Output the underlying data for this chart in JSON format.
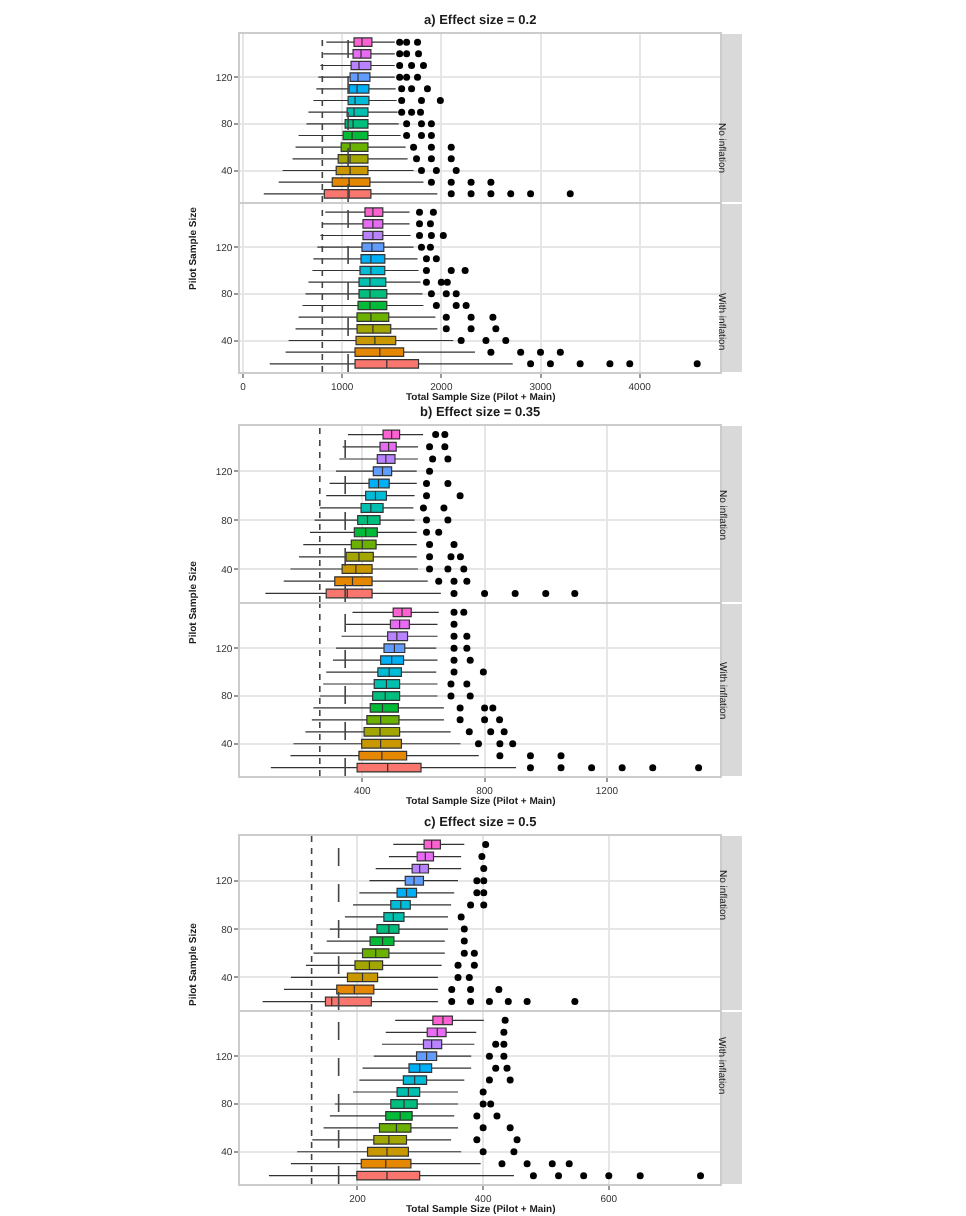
{
  "chart_data": [
    {
      "type": "box",
      "orientation": "horizontal",
      "title": "a) Effect size = 0.2",
      "ylabel": "Pilot Sample Size",
      "annotations": [
        "No inflation"
      ],
      "tick_labels": "y",
      "grid": true,
      "categories": [
        null,
        null,
        null,
        "120",
        null,
        null,
        null,
        "80",
        null,
        null,
        null,
        "40",
        null,
        null
      ],
      "colors": [
        "#FD61D1",
        "#E76BF3",
        "#B983FF",
        "#619CFF",
        "#00B0F6",
        "#00BCD8",
        "#00C0AF",
        "#00BF7D",
        "#00BA38",
        "#6BB100",
        "#A3A500",
        "#C99800",
        "#E58700",
        "#F8766D"
      ],
      "xlim": [
        -30,
        4810
      ],
      "xticks": [
        0,
        1000,
        2000,
        3000,
        4000
      ],
      "ref_lines": [
        {
          "axis": "x",
          "value": 800,
          "line_style": "dotted"
        },
        {
          "axis": "x",
          "value": 1060,
          "line_style": "dashed"
        }
      ],
      "boxes": [
        {
          "low": 840,
          "q1": 1120,
          "median": 1200,
          "q3": 1300,
          "high": 1530,
          "outliers": [
            1580,
            1650,
            1760
          ]
        },
        {
          "low": 810,
          "q1": 1110,
          "median": 1190,
          "q3": 1290,
          "high": 1530,
          "outliers": [
            1580,
            1650,
            1770
          ]
        },
        {
          "low": 780,
          "q1": 1090,
          "median": 1170,
          "q3": 1290,
          "high": 1530,
          "outliers": [
            1580,
            1700,
            1820
          ]
        },
        {
          "low": 760,
          "q1": 1080,
          "median": 1160,
          "q3": 1280,
          "high": 1530,
          "outliers": [
            1580,
            1650,
            1760
          ]
        },
        {
          "low": 740,
          "q1": 1070,
          "median": 1150,
          "q3": 1270,
          "high": 1540,
          "outliers": [
            1600,
            1700,
            1860
          ]
        },
        {
          "low": 710,
          "q1": 1060,
          "median": 1130,
          "q3": 1270,
          "high": 1550,
          "outliers": [
            1600,
            1800,
            1990
          ]
        },
        {
          "low": 660,
          "q1": 1050,
          "median": 1120,
          "q3": 1260,
          "high": 1560,
          "outliers": [
            1600,
            1700,
            1790
          ]
        },
        {
          "low": 640,
          "q1": 1030,
          "median": 1110,
          "q3": 1260,
          "high": 1570,
          "outliers": [
            1650,
            1800,
            1900
          ]
        },
        {
          "low": 560,
          "q1": 1010,
          "median": 1100,
          "q3": 1260,
          "high": 1590,
          "outliers": [
            1650,
            1800,
            1900
          ]
        },
        {
          "low": 530,
          "q1": 990,
          "median": 1080,
          "q3": 1260,
          "high": 1640,
          "outliers": [
            1720,
            1900,
            2100
          ]
        },
        {
          "low": 500,
          "q1": 960,
          "median": 1080,
          "q3": 1260,
          "high": 1660,
          "outliers": [
            1750,
            1900,
            2100
          ]
        },
        {
          "low": 400,
          "q1": 940,
          "median": 1080,
          "q3": 1260,
          "high": 1720,
          "outliers": [
            1800,
            1950,
            2150
          ]
        },
        {
          "low": 360,
          "q1": 900,
          "median": 1070,
          "q3": 1280,
          "high": 1820,
          "outliers": [
            1900,
            2100,
            2300,
            2500
          ]
        },
        {
          "low": 210,
          "q1": 820,
          "median": 1070,
          "q3": 1290,
          "high": 1960,
          "outliers": [
            2100,
            2300,
            2500,
            2700,
            2900,
            3300
          ]
        }
      ]
    },
    {
      "type": "box",
      "orientation": "horizontal",
      "xlabel": "Total Sample Size (Pilot + Main)",
      "annotations": [
        "With inflation"
      ],
      "grid": true,
      "categories": [
        null,
        null,
        null,
        "120",
        null,
        null,
        null,
        "80",
        null,
        null,
        null,
        "40",
        null,
        null
      ],
      "colors": [
        "#FD61D1",
        "#E76BF3",
        "#B983FF",
        "#619CFF",
        "#00B0F6",
        "#00BCD8",
        "#00C0AF",
        "#00BF7D",
        "#00BA38",
        "#6BB100",
        "#A3A500",
        "#C99800",
        "#E58700",
        "#F8766D"
      ],
      "xlim": [
        -30,
        4810
      ],
      "xticks": [
        0,
        1000,
        2000,
        3000,
        4000
      ],
      "ref_lines": [
        {
          "axis": "x",
          "value": 800,
          "line_style": "dotted"
        },
        {
          "axis": "x",
          "value": 1060,
          "line_style": "dashed"
        }
      ],
      "boxes": [
        {
          "low": 830,
          "q1": 1230,
          "median": 1310,
          "q3": 1410,
          "high": 1680,
          "outliers": [
            1780,
            1920
          ]
        },
        {
          "low": 800,
          "q1": 1210,
          "median": 1310,
          "q3": 1410,
          "high": 1680,
          "outliers": [
            1780,
            1890
          ]
        },
        {
          "low": 780,
          "q1": 1210,
          "median": 1310,
          "q3": 1410,
          "high": 1690,
          "outliers": [
            1780,
            1900,
            2020
          ]
        },
        {
          "low": 750,
          "q1": 1200,
          "median": 1300,
          "q3": 1420,
          "high": 1720,
          "outliers": [
            1800,
            1890
          ]
        },
        {
          "low": 710,
          "q1": 1190,
          "median": 1290,
          "q3": 1430,
          "high": 1760,
          "outliers": [
            1850,
            1950
          ]
        },
        {
          "low": 700,
          "q1": 1180,
          "median": 1290,
          "q3": 1430,
          "high": 1770,
          "outliers": [
            1850,
            2100,
            2240
          ]
        },
        {
          "low": 660,
          "q1": 1170,
          "median": 1280,
          "q3": 1440,
          "high": 1790,
          "outliers": [
            1850,
            2000,
            2060
          ]
        },
        {
          "low": 630,
          "q1": 1170,
          "median": 1280,
          "q3": 1450,
          "high": 1810,
          "outliers": [
            1900,
            2050,
            2150
          ]
        },
        {
          "low": 600,
          "q1": 1160,
          "median": 1280,
          "q3": 1450,
          "high": 1820,
          "outliers": [
            1950,
            2150,
            2250
          ]
        },
        {
          "low": 560,
          "q1": 1150,
          "median": 1290,
          "q3": 1470,
          "high": 1940,
          "outliers": [
            2050,
            2300,
            2520
          ]
        },
        {
          "low": 530,
          "q1": 1150,
          "median": 1310,
          "q3": 1490,
          "high": 1960,
          "outliers": [
            2050,
            2300,
            2550
          ]
        },
        {
          "low": 460,
          "q1": 1140,
          "median": 1330,
          "q3": 1540,
          "high": 2120,
          "outliers": [
            2200,
            2450,
            2650
          ]
        },
        {
          "low": 430,
          "q1": 1130,
          "median": 1380,
          "q3": 1620,
          "high": 2340,
          "outliers": [
            2500,
            2800,
            3000,
            3200
          ]
        },
        {
          "low": 270,
          "q1": 1130,
          "median": 1450,
          "q3": 1770,
          "high": 2720,
          "outliers": [
            2900,
            3100,
            3400,
            3700,
            3900,
            4580
          ]
        }
      ]
    },
    {
      "type": "box",
      "orientation": "horizontal",
      "title": "b) Effect size = 0.35",
      "ylabel": "Pilot Sample Size",
      "annotations": [
        "No inflation"
      ],
      "tick_labels": "y",
      "grid": true,
      "categories": [
        null,
        null,
        null,
        "120",
        null,
        null,
        null,
        "80",
        null,
        null,
        null,
        "40",
        null,
        null
      ],
      "colors": [
        "#FD61D1",
        "#E76BF3",
        "#B983FF",
        "#619CFF",
        "#00B0F6",
        "#00BCD8",
        "#00C0AF",
        "#00BF7D",
        "#00BA38",
        "#6BB100",
        "#A3A500",
        "#C99800",
        "#E58700",
        "#F8766D"
      ],
      "xlim": [
        0,
        1570
      ],
      "xticks": [
        400,
        800,
        1200
      ],
      "ref_lines": [
        {
          "axis": "x",
          "value": 261,
          "line_style": "dotted"
        },
        {
          "axis": "x",
          "value": 344,
          "line_style": "dashed"
        }
      ],
      "boxes": [
        {
          "low": 353,
          "q1": 468,
          "median": 496,
          "q3": 522,
          "high": 599,
          "outliers": [
            640,
            670
          ]
        },
        {
          "low": 336,
          "q1": 458,
          "median": 486,
          "q3": 511,
          "high": 582,
          "outliers": [
            620,
            670
          ]
        },
        {
          "low": 325,
          "q1": 449,
          "median": 477,
          "q3": 507,
          "high": 582,
          "outliers": [
            630,
            680
          ]
        },
        {
          "low": 314,
          "q1": 436,
          "median": 466,
          "q3": 496,
          "high": 578,
          "outliers": [
            620
          ]
        },
        {
          "low": 293,
          "q1": 422,
          "median": 453,
          "q3": 488,
          "high": 578,
          "outliers": [
            610,
            680
          ]
        },
        {
          "low": 282,
          "q1": 411,
          "median": 443,
          "q3": 479,
          "high": 571,
          "outliers": [
            610,
            720
          ]
        },
        {
          "low": 261,
          "q1": 396,
          "median": 428,
          "q3": 468,
          "high": 567,
          "outliers": [
            600,
            667
          ]
        },
        {
          "low": 244,
          "q1": 385,
          "median": 417,
          "q3": 458,
          "high": 571,
          "outliers": [
            610,
            680
          ]
        },
        {
          "low": 229,
          "q1": 374,
          "median": 411,
          "q3": 449,
          "high": 578,
          "outliers": [
            610,
            650
          ]
        },
        {
          "low": 207,
          "q1": 364,
          "median": 400,
          "q3": 445,
          "high": 578,
          "outliers": [
            620,
            700
          ]
        },
        {
          "low": 193,
          "q1": 347,
          "median": 389,
          "q3": 436,
          "high": 578,
          "outliers": [
            620,
            690,
            721
          ]
        },
        {
          "low": 165,
          "q1": 334,
          "median": 379,
          "q3": 432,
          "high": 582,
          "outliers": [
            620,
            680,
            732
          ]
        },
        {
          "low": 143,
          "q1": 310,
          "median": 368,
          "q3": 432,
          "high": 614,
          "outliers": [
            650,
            700,
            742
          ]
        },
        {
          "low": 83,
          "q1": 282,
          "median": 351,
          "q3": 432,
          "high": 657,
          "outliers": [
            700,
            800,
            900,
            1000,
            1095
          ]
        }
      ]
    },
    {
      "type": "box",
      "orientation": "horizontal",
      "xlabel": "Total Sample Size (Pilot + Main)",
      "annotations": [
        "With inflation"
      ],
      "grid": true,
      "categories": [
        null,
        null,
        null,
        "120",
        null,
        null,
        null,
        "80",
        null,
        null,
        null,
        "40",
        null,
        null
      ],
      "colors": [
        "#FD61D1",
        "#E76BF3",
        "#B983FF",
        "#619CFF",
        "#00B0F6",
        "#00BCD8",
        "#00C0AF",
        "#00BF7D",
        "#00BA38",
        "#6BB100",
        "#A3A500",
        "#C99800",
        "#E58700",
        "#F8766D"
      ],
      "xlim": [
        0,
        1570
      ],
      "xticks": [
        400,
        800,
        1200
      ],
      "ref_lines": [
        {
          "axis": "x",
          "value": 261,
          "line_style": "dotted"
        },
        {
          "axis": "x",
          "value": 344,
          "line_style": "dashed"
        }
      ],
      "boxes": [
        {
          "low": 368,
          "q1": 501,
          "median": 530,
          "q3": 560,
          "high": 650,
          "outliers": [
            700,
            732
          ]
        },
        {
          "low": 347,
          "q1": 492,
          "median": 522,
          "q3": 554,
          "high": 646,
          "outliers": [
            700
          ]
        },
        {
          "low": 332,
          "q1": 483,
          "median": 513,
          "q3": 548,
          "high": 646,
          "outliers": [
            700,
            742
          ]
        },
        {
          "low": 314,
          "q1": 471,
          "median": 505,
          "q3": 539,
          "high": 642,
          "outliers": [
            700,
            742
          ]
        },
        {
          "low": 304,
          "q1": 460,
          "median": 496,
          "q3": 535,
          "high": 646,
          "outliers": [
            700,
            753
          ]
        },
        {
          "low": 282,
          "q1": 451,
          "median": 488,
          "q3": 528,
          "high": 642,
          "outliers": [
            700,
            796
          ]
        },
        {
          "low": 272,
          "q1": 439,
          "median": 479,
          "q3": 522,
          "high": 646,
          "outliers": [
            690,
            742
          ]
        },
        {
          "low": 261,
          "q1": 434,
          "median": 475,
          "q3": 522,
          "high": 646,
          "outliers": [
            690,
            753
          ]
        },
        {
          "low": 240,
          "q1": 426,
          "median": 466,
          "q3": 518,
          "high": 667,
          "outliers": [
            720,
            800,
            827
          ]
        },
        {
          "low": 235,
          "q1": 415,
          "median": 460,
          "q3": 520,
          "high": 667,
          "outliers": [
            720,
            800,
            849
          ]
        },
        {
          "low": 214,
          "q1": 406,
          "median": 458,
          "q3": 522,
          "high": 689,
          "outliers": [
            750,
            820,
            864
          ]
        },
        {
          "low": 175,
          "q1": 398,
          "median": 460,
          "q3": 528,
          "high": 721,
          "outliers": [
            780,
            850,
            892
          ]
        },
        {
          "low": 165,
          "q1": 389,
          "median": 464,
          "q3": 545,
          "high": 781,
          "outliers": [
            850,
            950,
            1050
          ]
        },
        {
          "low": 101,
          "q1": 383,
          "median": 483,
          "q3": 592,
          "high": 903,
          "outliers": [
            950,
            1050,
            1150,
            1250,
            1350,
            1500
          ]
        }
      ]
    },
    {
      "type": "box",
      "orientation": "horizontal",
      "title": "c) Effect size = 0.5",
      "ylabel": "Pilot Sample Size",
      "annotations": [
        "No inflation"
      ],
      "tick_labels": "y",
      "grid": true,
      "categories": [
        null,
        null,
        null,
        "120",
        null,
        null,
        null,
        "80",
        null,
        null,
        null,
        "40",
        null,
        null
      ],
      "colors": [
        "#FD61D1",
        "#E76BF3",
        "#B983FF",
        "#619CFF",
        "#00B0F6",
        "#00BCD8",
        "#00C0AF",
        "#00BF7D",
        "#00BA38",
        "#6BB100",
        "#A3A500",
        "#C99800",
        "#E58700",
        "#F8766D"
      ],
      "xlim": [
        13,
        777
      ],
      "xticks": [
        200,
        400,
        600
      ],
      "ref_lines": [
        {
          "axis": "x",
          "value": 127,
          "line_style": "dotted"
        },
        {
          "axis": "x",
          "value": 170,
          "line_style": "dashed"
        }
      ],
      "boxes": [
        {
          "low": 257,
          "q1": 306,
          "median": 318,
          "q3": 332,
          "high": 370,
          "outliers": [
            404
          ]
        },
        {
          "low": 250,
          "q1": 295,
          "median": 308,
          "q3": 321,
          "high": 365,
          "outliers": [
            398
          ]
        },
        {
          "low": 229,
          "q1": 287,
          "median": 299,
          "q3": 313,
          "high": 365,
          "outliers": [
            401
          ]
        },
        {
          "low": 219,
          "q1": 276,
          "median": 290,
          "q3": 305,
          "high": 360,
          "outliers": [
            390,
            401
          ]
        },
        {
          "low": 203,
          "q1": 263,
          "median": 278,
          "q3": 294,
          "high": 354,
          "outliers": [
            390,
            401
          ]
        },
        {
          "low": 193,
          "q1": 253,
          "median": 269,
          "q3": 284,
          "high": 349,
          "outliers": [
            380,
            401
          ]
        },
        {
          "low": 180,
          "q1": 242,
          "median": 257,
          "q3": 274,
          "high": 344,
          "outliers": [
            365
          ]
        },
        {
          "low": 156,
          "q1": 231,
          "median": 250,
          "q3": 266,
          "high": 344,
          "outliers": [
            370
          ]
        },
        {
          "low": 151,
          "q1": 220,
          "median": 240,
          "q3": 258,
          "high": 339,
          "outliers": [
            370
          ]
        },
        {
          "low": 130,
          "q1": 208,
          "median": 229,
          "q3": 250,
          "high": 339,
          "outliers": [
            370,
            386
          ]
        },
        {
          "low": 118,
          "q1": 196,
          "median": 219,
          "q3": 240,
          "high": 334,
          "outliers": [
            360,
            386
          ]
        },
        {
          "low": 94,
          "q1": 184,
          "median": 208,
          "q3": 232,
          "high": 328,
          "outliers": [
            360,
            378
          ]
        },
        {
          "low": 83,
          "q1": 167,
          "median": 195,
          "q3": 226,
          "high": 328,
          "outliers": [
            350,
            380,
            425
          ]
        },
        {
          "low": 49,
          "q1": 149,
          "median": 159,
          "q3": 222,
          "high": 328,
          "outliers": [
            350,
            380,
            410,
            440,
            470,
            546
          ]
        }
      ]
    },
    {
      "type": "box",
      "orientation": "horizontal",
      "xlabel": "Total Sample Size (Pilot + Main)",
      "annotations": [
        "With inflation"
      ],
      "grid": true,
      "categories": [
        null,
        null,
        null,
        "120",
        null,
        null,
        null,
        "80",
        null,
        null,
        null,
        "40",
        null,
        null
      ],
      "colors": [
        "#FD61D1",
        "#E76BF3",
        "#B983FF",
        "#619CFF",
        "#00B0F6",
        "#00BCD8",
        "#00C0AF",
        "#00BF7D",
        "#00BA38",
        "#6BB100",
        "#A3A500",
        "#C99800",
        "#E58700",
        "#F8766D"
      ],
      "xlim": [
        13,
        777
      ],
      "xticks": [
        200,
        400,
        600
      ],
      "ref_lines": [
        {
          "axis": "x",
          "value": 127,
          "line_style": "dotted"
        },
        {
          "axis": "x",
          "value": 170,
          "line_style": "dashed"
        }
      ],
      "boxes": [
        {
          "low": 260,
          "q1": 320,
          "median": 336,
          "q3": 351,
          "high": 401,
          "outliers": [
            435
          ]
        },
        {
          "low": 245,
          "q1": 311,
          "median": 327,
          "q3": 341,
          "high": 389,
          "outliers": [
            433
          ]
        },
        {
          "low": 239,
          "q1": 305,
          "median": 318,
          "q3": 334,
          "high": 386,
          "outliers": [
            420,
            433
          ]
        },
        {
          "low": 226,
          "q1": 294,
          "median": 310,
          "q3": 326,
          "high": 381,
          "outliers": [
            410,
            433
          ]
        },
        {
          "low": 208,
          "q1": 282,
          "median": 299,
          "q3": 318,
          "high": 381,
          "outliers": [
            420,
            438
          ]
        },
        {
          "low": 203,
          "q1": 273,
          "median": 291,
          "q3": 310,
          "high": 370,
          "outliers": [
            410,
            443
          ]
        },
        {
          "low": 193,
          "q1": 263,
          "median": 281,
          "q3": 299,
          "high": 360,
          "outliers": [
            400
          ]
        },
        {
          "low": 164,
          "q1": 253,
          "median": 274,
          "q3": 295,
          "high": 360,
          "outliers": [
            400,
            412
          ]
        },
        {
          "low": 156,
          "q1": 245,
          "median": 268,
          "q3": 287,
          "high": 354,
          "outliers": [
            390,
            422
          ]
        },
        {
          "low": 146,
          "q1": 235,
          "median": 262,
          "q3": 285,
          "high": 360,
          "outliers": [
            400,
            443
          ]
        },
        {
          "low": 128,
          "q1": 226,
          "median": 250,
          "q3": 278,
          "high": 349,
          "outliers": [
            390,
            454
          ]
        },
        {
          "low": 104,
          "q1": 216,
          "median": 247,
          "q3": 281,
          "high": 365,
          "outliers": [
            400,
            449
          ]
        },
        {
          "low": 94,
          "q1": 206,
          "median": 245,
          "q3": 285,
          "high": 396,
          "outliers": [
            430,
            470,
            510,
            537
          ]
        },
        {
          "low": 59,
          "q1": 199,
          "median": 247,
          "q3": 299,
          "high": 449,
          "outliers": [
            480,
            520,
            560,
            600,
            650,
            746
          ]
        }
      ]
    }
  ]
}
